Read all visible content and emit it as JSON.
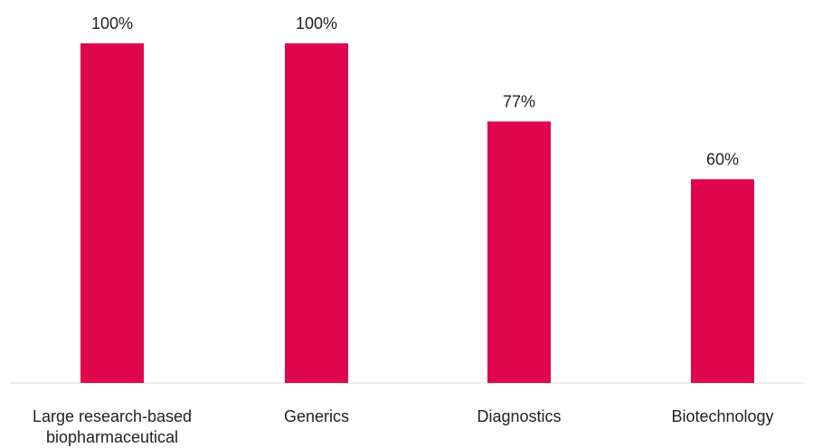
{
  "chart_data": {
    "type": "bar",
    "title": "",
    "xlabel": "",
    "ylabel": "",
    "ylim": [
      0,
      100
    ],
    "grid": false,
    "legend": "none",
    "categories": [
      [
        "Large research-based",
        "biopharmaceutical"
      ],
      [
        "Generics"
      ],
      [
        "Diagnostics"
      ],
      [
        "Biotechnology"
      ]
    ],
    "values": [
      100,
      100,
      77,
      60
    ],
    "value_labels": [
      "100%",
      "100%",
      "77%",
      "60%"
    ],
    "colors": {
      "bar": "#e0064e",
      "text": "#222222",
      "baseline": "#d9d9d9"
    }
  }
}
